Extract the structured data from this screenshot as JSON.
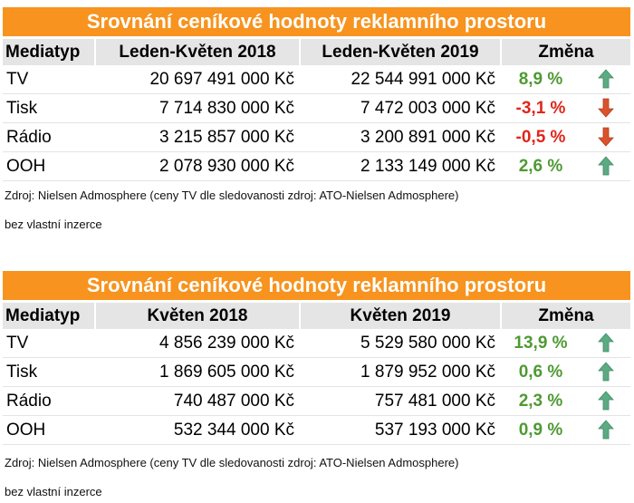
{
  "tables": [
    {
      "title": "Srovnání ceníkové hodnoty reklamního prostoru",
      "headers": [
        "Mediatyp",
        "Leden-Květen 2018",
        "Leden-Květen 2019",
        "Změna"
      ],
      "rows": [
        {
          "media": "TV",
          "y2018": "20 697 491 000 Kč",
          "y2019": "22 544 991 000 Kč",
          "change": "8,9 %",
          "trend": "up-arrow-icon"
        },
        {
          "media": "Tisk",
          "y2018": "7 714 830 000 Kč",
          "y2019": "7 472 003 000 Kč",
          "change": "-3,1 %",
          "trend": "down-arrow-icon"
        },
        {
          "media": "Rádio",
          "y2018": "3 215 857 000 Kč",
          "y2019": "3 200 891 000 Kč",
          "change": "-0,5 %",
          "trend": "down-arrow-icon"
        },
        {
          "media": "OOH",
          "y2018": "2 078 930 000 Kč",
          "y2019": "2 133 149 000 Kč",
          "change": "2,6 %",
          "trend": "up-arrow-icon"
        }
      ],
      "source": "Zdroj: Nielsen Admosphere (ceny TV dle sledovanosti zdroj: ATO-Nielsen Admosphere)",
      "note": "bez vlastní inzerce"
    },
    {
      "title": "Srovnání ceníkové hodnoty reklamního prostoru",
      "headers": [
        "Mediatyp",
        "Květen 2018",
        "Květen 2019",
        "Změna"
      ],
      "rows": [
        {
          "media": "TV",
          "y2018": "4 856 239 000 Kč",
          "y2019": "5 529 580 000 Kč",
          "change": "13,9 %",
          "trend": "up-arrow-icon"
        },
        {
          "media": "Tisk",
          "y2018": "1 869 605 000 Kč",
          "y2019": "1 879 952 000 Kč",
          "change": "0,6 %",
          "trend": "up-arrow-icon"
        },
        {
          "media": "Rádio",
          "y2018": "740 487 000 Kč",
          "y2019": "757 481 000 Kč",
          "change": "2,3 %",
          "trend": "up-arrow-icon"
        },
        {
          "media": "OOH",
          "y2018": "532 344 000 Kč",
          "y2019": "537 193 000 Kč",
          "change": "0,9 %",
          "trend": "up-arrow-icon"
        }
      ],
      "source": "Zdroj: Nielsen Admosphere (ceny TV dle sledovanosti zdroj: ATO-Nielsen Admosphere)",
      "note": "bez vlastní inzerce"
    }
  ],
  "colors": {
    "banner": "#f7931e",
    "header_bg": "#e5e5e5",
    "positive": "#4e9a33",
    "negative": "#e0251b",
    "arrow_up": "#5cab83",
    "arrow_down": "#d9532c"
  }
}
